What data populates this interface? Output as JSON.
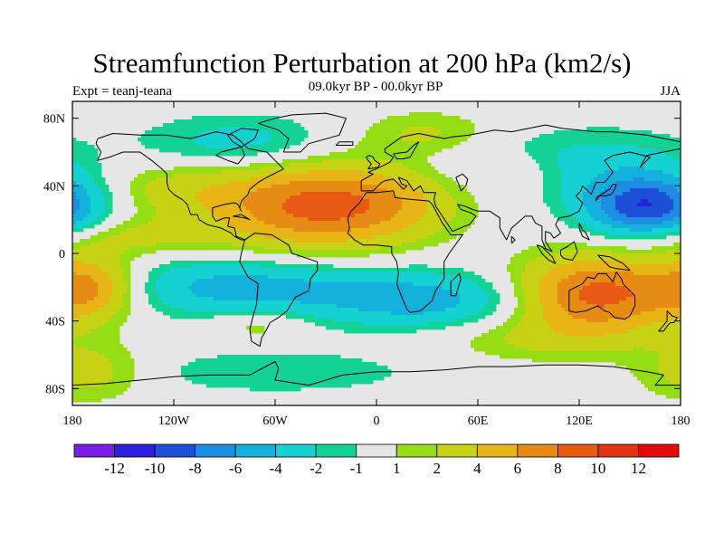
{
  "header": {
    "title": "Streamfunction Perturbation at 200 hPa (km2/s)",
    "subtitle": "09.0kyr BP - 00.0kyr BP",
    "left_label": "Expt = teanj-teana",
    "right_label": "JJA"
  },
  "chart_data": {
    "type": "contour-map",
    "title": "Streamfunction Perturbation at 200 hPa (km2/s)",
    "variable": "Streamfunction perturbation",
    "units": "km2/s",
    "pressure_level": "200 hPa",
    "season": "JJA",
    "period": "09.0kyr BP - 00.0kyr BP",
    "experiment": "teanj-teana",
    "xlim": [
      -180,
      180
    ],
    "ylim": [
      -90,
      90
    ],
    "x_ticks": [
      -180,
      -120,
      -60,
      0,
      60,
      120,
      180
    ],
    "x_tick_labels": [
      "180",
      "120W",
      "60W",
      "0",
      "60E",
      "120E",
      "180"
    ],
    "y_ticks": [
      80,
      40,
      0,
      -40,
      -80
    ],
    "y_tick_labels": [
      "80N",
      "40N",
      "0",
      "40S",
      "80S"
    ],
    "levels": [
      -12,
      -10,
      -8,
      -6,
      -4,
      -2,
      -1,
      1,
      2,
      4,
      6,
      8,
      10,
      12
    ],
    "level_labels": [
      "-12",
      "-10",
      "-8",
      "-6",
      "-4",
      "-2",
      "-1",
      "1",
      "2",
      "4",
      "6",
      "8",
      "10",
      "12"
    ],
    "colors": [
      "#7a1ee6",
      "#2d1ee0",
      "#1e4fd8",
      "#1e8ce0",
      "#14b0dc",
      "#14d2d2",
      "#14d296",
      "#e6e6e6",
      "#96dc14",
      "#c8d214",
      "#e6b414",
      "#e68c14",
      "#e65a14",
      "#e63214",
      "#e60a0a"
    ],
    "features": [
      {
        "lon": -40,
        "lat": 28,
        "value": 8,
        "desc": "North Atlantic / North Africa positive center"
      },
      {
        "lon": 130,
        "lat": -24,
        "value": 9,
        "desc": "Australia positive center"
      },
      {
        "lon": 160,
        "lat": 28,
        "value": -10,
        "desc": "Northwest Pacific negative center"
      },
      {
        "lon": -80,
        "lat": -20,
        "value": -5,
        "desc": "Southeast Pacific / South America negative band"
      },
      {
        "lon": 30,
        "lat": -28,
        "value": -5,
        "desc": "South Atlantic / southern Africa negative band"
      },
      {
        "lon": -170,
        "lat": -20,
        "value": 6,
        "desc": "Central South Pacific positive center"
      },
      {
        "lon": -80,
        "lat": 65,
        "value": -3,
        "desc": "Canada negative center"
      }
    ]
  }
}
